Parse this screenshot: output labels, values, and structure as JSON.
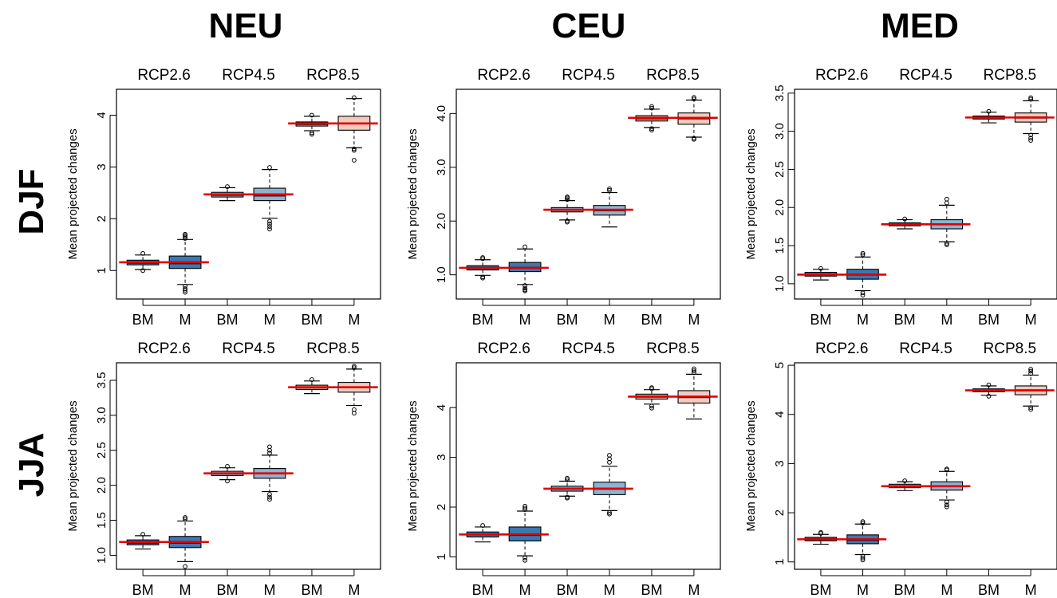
{
  "columns": [
    "NEU",
    "CEU",
    "MED"
  ],
  "rows": [
    "DJF",
    "JJA"
  ],
  "colors": {
    "frame": "#000000",
    "median_line": "#e00000",
    "rcp26_BM": "#3a78b0",
    "rcp26_M": "#3a78b0",
    "rcp45_BM": "#8fb3cf",
    "rcp45_M": "#8fb3cf",
    "rcp85_BM": "#e3a895",
    "rcp85_M": "#f2cbbd"
  },
  "chart_data": [
    {
      "type": "box",
      "id": "NEU-DJF",
      "column": "NEU",
      "row": "DJF",
      "top_labels": [
        "RCP2.6",
        "RCP4.5",
        "RCP8.5"
      ],
      "categories": [
        "BM",
        "M",
        "BM",
        "M",
        "BM",
        "M"
      ],
      "ylabel": "Mean projected changes",
      "ylim": [
        0.45,
        4.5
      ],
      "yticks": [
        1,
        2,
        3,
        4
      ],
      "ytick_labels": [
        "1",
        "2",
        "3",
        "4"
      ],
      "boxes": [
        {
          "q1": 1.11,
          "med": 1.15,
          "q3": 1.2,
          "wlo": 1.02,
          "whi": 1.3,
          "out": [
            1.33,
            1.0
          ],
          "mean": 1.16
        },
        {
          "q1": 1.04,
          "med": 1.14,
          "q3": 1.28,
          "wlo": 0.73,
          "whi": 1.6,
          "out": [
            1.62,
            1.65,
            1.68,
            1.7,
            0.7,
            0.65,
            0.62,
            0.58
          ],
          "mean": 1.16
        },
        {
          "q1": 2.42,
          "med": 2.46,
          "q3": 2.51,
          "wlo": 2.35,
          "whi": 2.6,
          "out": [
            2.62
          ],
          "mean": 2.47
        },
        {
          "q1": 2.35,
          "med": 2.45,
          "q3": 2.59,
          "wlo": 2.01,
          "whi": 2.95,
          "out": [
            2.99,
            1.95,
            1.9,
            1.85,
            1.8
          ],
          "mean": 2.47
        },
        {
          "q1": 3.79,
          "med": 3.83,
          "q3": 3.87,
          "wlo": 3.7,
          "whi": 3.98,
          "out": [
            4.0,
            3.66,
            3.63
          ],
          "mean": 3.84
        },
        {
          "q1": 3.71,
          "med": 3.84,
          "q3": 3.98,
          "wlo": 3.37,
          "whi": 4.32,
          "out": [
            4.34,
            3.35,
            3.32,
            3.13
          ],
          "mean": 3.84
        }
      ]
    },
    {
      "type": "box",
      "id": "CEU-DJF",
      "column": "CEU",
      "row": "DJF",
      "top_labels": [
        "RCP2.6",
        "RCP4.5",
        "RCP8.5"
      ],
      "categories": [
        "BM",
        "M",
        "BM",
        "M",
        "BM",
        "M"
      ],
      "ylabel": "Mean projected changes",
      "ylim": [
        0.55,
        4.45
      ],
      "yticks": [
        1.0,
        2.0,
        3.0,
        4.0
      ],
      "ytick_labels": [
        "1.0",
        "2.0",
        "3.0",
        "4.0"
      ],
      "boxes": [
        {
          "q1": 1.09,
          "med": 1.13,
          "q3": 1.17,
          "wlo": 0.99,
          "whi": 1.28,
          "out": [
            1.3,
            1.32,
            0.96,
            0.94
          ],
          "mean": 1.13
        },
        {
          "q1": 1.06,
          "med": 1.13,
          "q3": 1.23,
          "wlo": 0.82,
          "whi": 1.48,
          "out": [
            1.52,
            0.8,
            0.75,
            0.72,
            0.7
          ],
          "mean": 1.13
        },
        {
          "q1": 2.17,
          "med": 2.21,
          "q3": 2.25,
          "wlo": 2.02,
          "whi": 2.38,
          "out": [
            2.4,
            2.43,
            2.45,
            2.0,
            1.98
          ],
          "mean": 2.21
        },
        {
          "q1": 2.11,
          "med": 2.2,
          "q3": 2.29,
          "wlo": 1.89,
          "whi": 2.53,
          "out": [
            2.57,
            2.6
          ],
          "mean": 2.21
        },
        {
          "q1": 3.86,
          "med": 3.91,
          "q3": 3.96,
          "wlo": 3.74,
          "whi": 4.08,
          "out": [
            4.1,
            4.13,
            3.72,
            3.69
          ],
          "mean": 3.92
        },
        {
          "q1": 3.8,
          "med": 3.91,
          "q3": 4.01,
          "wlo": 3.56,
          "whi": 4.25,
          "out": [
            4.27,
            4.3,
            3.54,
            3.52
          ],
          "mean": 3.92
        }
      ]
    },
    {
      "type": "box",
      "id": "MED-DJF",
      "column": "MED",
      "row": "DJF",
      "top_labels": [
        "RCP2.6",
        "RCP4.5",
        "RCP8.5"
      ],
      "categories": [
        "BM",
        "M",
        "BM",
        "M",
        "BM",
        "M"
      ],
      "ylabel": "Mean projected changes",
      "ylim": [
        0.8,
        3.55
      ],
      "yticks": [
        1.0,
        1.5,
        2.0,
        2.5,
        3.0,
        3.5
      ],
      "ytick_labels": [
        "1.0",
        "1.5",
        "2.0",
        "2.5",
        "3.0",
        "3.5"
      ],
      "boxes": [
        {
          "q1": 1.1,
          "med": 1.12,
          "q3": 1.15,
          "wlo": 1.05,
          "whi": 1.19,
          "out": [
            1.2
          ],
          "mean": 1.12
        },
        {
          "q1": 1.06,
          "med": 1.12,
          "q3": 1.19,
          "wlo": 0.91,
          "whi": 1.35,
          "out": [
            1.38,
            1.4,
            0.88,
            0.85
          ],
          "mean": 1.12
        },
        {
          "q1": 1.76,
          "med": 1.78,
          "q3": 1.8,
          "wlo": 1.72,
          "whi": 1.84,
          "out": [
            1.85
          ],
          "mean": 1.78
        },
        {
          "q1": 1.72,
          "med": 1.78,
          "q3": 1.84,
          "wlo": 1.55,
          "whi": 2.03,
          "out": [
            2.06,
            2.11,
            1.53,
            1.51
          ],
          "mean": 1.78
        },
        {
          "q1": 3.16,
          "med": 3.18,
          "q3": 3.2,
          "wlo": 3.11,
          "whi": 3.25,
          "out": [
            3.26
          ],
          "mean": 3.18
        },
        {
          "q1": 3.12,
          "med": 3.18,
          "q3": 3.24,
          "wlo": 2.97,
          "whi": 3.4,
          "out": [
            3.42,
            3.44,
            2.95,
            2.91,
            2.88
          ],
          "mean": 3.18
        }
      ]
    },
    {
      "type": "box",
      "id": "NEU-JJA",
      "column": "NEU",
      "row": "JJA",
      "top_labels": [
        "RCP2.6",
        "RCP4.5",
        "RCP8.5"
      ],
      "categories": [
        "BM",
        "M",
        "BM",
        "M",
        "BM",
        "M"
      ],
      "ylabel": "Mean projected changes",
      "ylim": [
        0.8,
        3.75
      ],
      "yticks": [
        1.0,
        1.5,
        2.0,
        2.5,
        3.0,
        3.5
      ],
      "ytick_labels": [
        "1.0",
        "1.5",
        "2.0",
        "2.5",
        "3.0",
        "3.5"
      ],
      "boxes": [
        {
          "q1": 1.15,
          "med": 1.18,
          "q3": 1.22,
          "wlo": 1.09,
          "whi": 1.28,
          "out": [
            1.3
          ],
          "mean": 1.19
        },
        {
          "q1": 1.11,
          "med": 1.18,
          "q3": 1.27,
          "wlo": 0.91,
          "whi": 1.49,
          "out": [
            1.52,
            1.54,
            0.84
          ],
          "mean": 1.19
        },
        {
          "q1": 2.14,
          "med": 2.17,
          "q3": 2.2,
          "wlo": 2.08,
          "whi": 2.25,
          "out": [
            2.27,
            2.06
          ],
          "mean": 2.17
        },
        {
          "q1": 2.1,
          "med": 2.17,
          "q3": 2.24,
          "wlo": 1.91,
          "whi": 2.43,
          "out": [
            2.46,
            2.5,
            2.55,
            1.87,
            1.83,
            1.8
          ],
          "mean": 2.17
        },
        {
          "q1": 3.37,
          "med": 3.4,
          "q3": 3.43,
          "wlo": 3.31,
          "whi": 3.49,
          "out": [
            3.51
          ],
          "mean": 3.4
        },
        {
          "q1": 3.33,
          "med": 3.4,
          "q3": 3.47,
          "wlo": 3.14,
          "whi": 3.66,
          "out": [
            3.68,
            3.7,
            3.08,
            3.03
          ],
          "mean": 3.4
        }
      ]
    },
    {
      "type": "box",
      "id": "CEU-JJA",
      "column": "CEU",
      "row": "JJA",
      "top_labels": [
        "RCP2.6",
        "RCP4.5",
        "RCP8.5"
      ],
      "categories": [
        "BM",
        "M",
        "BM",
        "M",
        "BM",
        "M"
      ],
      "ylabel": "Mean projected changes",
      "ylim": [
        0.75,
        4.9
      ],
      "yticks": [
        1,
        2,
        3,
        4
      ],
      "ytick_labels": [
        "1",
        "2",
        "3",
        "4"
      ],
      "boxes": [
        {
          "q1": 1.4,
          "med": 1.45,
          "q3": 1.5,
          "wlo": 1.3,
          "whi": 1.6,
          "out": [
            1.63
          ],
          "mean": 1.45
        },
        {
          "q1": 1.32,
          "med": 1.44,
          "q3": 1.6,
          "wlo": 1.02,
          "whi": 1.92,
          "out": [
            1.95,
            1.98,
            2.02,
            0.98,
            0.93
          ],
          "mean": 1.45
        },
        {
          "q1": 2.32,
          "med": 2.37,
          "q3": 2.42,
          "wlo": 2.22,
          "whi": 2.52,
          "out": [
            2.55,
            2.58,
            2.2,
            2.18
          ],
          "mean": 2.37
        },
        {
          "q1": 2.25,
          "med": 2.37,
          "q3": 2.5,
          "wlo": 1.93,
          "whi": 2.82,
          "out": [
            2.9,
            2.97,
            3.04,
            1.89,
            1.86
          ],
          "mean": 2.37
        },
        {
          "q1": 4.17,
          "med": 4.22,
          "q3": 4.27,
          "wlo": 4.07,
          "whi": 4.36,
          "out": [
            4.38,
            4.4,
            4.03,
            3.99
          ],
          "mean": 4.22
        },
        {
          "q1": 4.09,
          "med": 4.21,
          "q3": 4.34,
          "wlo": 3.77,
          "whi": 4.67,
          "out": [
            4.7,
            4.74,
            4.78
          ],
          "mean": 4.22
        }
      ]
    },
    {
      "type": "box",
      "id": "MED-JJA",
      "column": "MED",
      "row": "JJA",
      "top_labels": [
        "RCP2.6",
        "RCP4.5",
        "RCP8.5"
      ],
      "categories": [
        "BM",
        "M",
        "BM",
        "M",
        "BM",
        "M"
      ],
      "ylabel": "Mean projected changes",
      "ylim": [
        0.85,
        5.05
      ],
      "yticks": [
        1,
        2,
        3,
        4,
        5
      ],
      "ytick_labels": [
        "1",
        "2",
        "3",
        "4",
        "5"
      ],
      "boxes": [
        {
          "q1": 1.43,
          "med": 1.46,
          "q3": 1.5,
          "wlo": 1.36,
          "whi": 1.56,
          "out": [
            1.58,
            1.6
          ],
          "mean": 1.46
        },
        {
          "q1": 1.37,
          "med": 1.45,
          "q3": 1.55,
          "wlo": 1.15,
          "whi": 1.77,
          "out": [
            1.79,
            1.82,
            1.12,
            1.08,
            1.04
          ],
          "mean": 1.46
        },
        {
          "q1": 2.51,
          "med": 2.54,
          "q3": 2.58,
          "wlo": 2.45,
          "whi": 2.63,
          "out": [
            2.65
          ],
          "mean": 2.54
        },
        {
          "q1": 2.46,
          "med": 2.54,
          "q3": 2.63,
          "wlo": 2.26,
          "whi": 2.84,
          "out": [
            2.87,
            2.89,
            2.22,
            2.16,
            2.12
          ],
          "mean": 2.54
        },
        {
          "q1": 4.46,
          "med": 4.49,
          "q3": 4.52,
          "wlo": 4.39,
          "whi": 4.58,
          "out": [
            4.6,
            4.37
          ],
          "mean": 4.49
        },
        {
          "q1": 4.4,
          "med": 4.49,
          "q3": 4.58,
          "wlo": 4.17,
          "whi": 4.8,
          "out": [
            4.83,
            4.88,
            4.92,
            4.14,
            4.1
          ],
          "mean": 4.49
        }
      ]
    }
  ]
}
